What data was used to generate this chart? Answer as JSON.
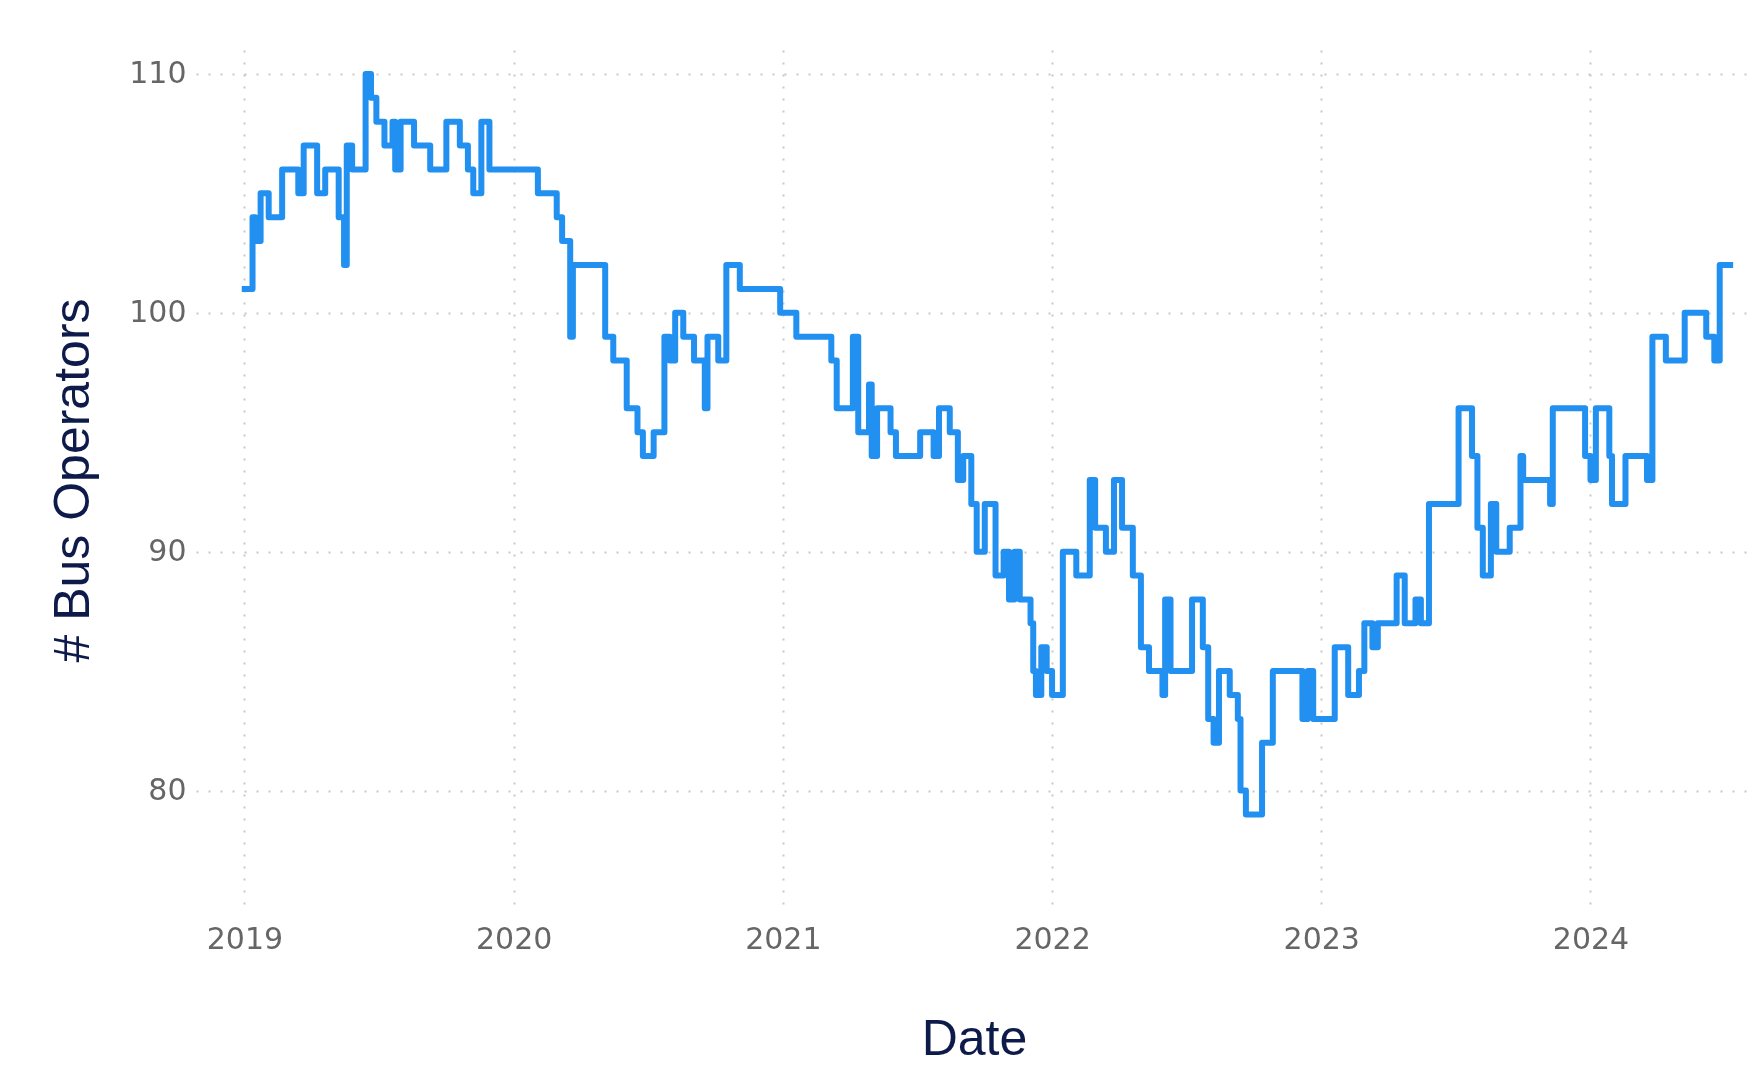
{
  "chart_data": {
    "type": "step",
    "xlabel": "Date",
    "ylabel": "# Bus Operators",
    "x": [
      2018.99,
      2019.03,
      2019.04,
      2019.06,
      2019.09,
      2019.14,
      2019.2,
      2019.22,
      2019.27,
      2019.3,
      2019.35,
      2019.37,
      2019.38,
      2019.4,
      2019.45,
      2019.47,
      2019.49,
      2019.52,
      2019.55,
      2019.56,
      2019.58,
      2019.63,
      2019.69,
      2019.75,
      2019.8,
      2019.83,
      2019.85,
      2019.88,
      2019.91,
      2020.09,
      2020.16,
      2020.18,
      2020.21,
      2020.22,
      2020.34,
      2020.37,
      2020.42,
      2020.46,
      2020.48,
      2020.52,
      2020.56,
      2020.58,
      2020.6,
      2020.63,
      2020.67,
      2020.71,
      2020.72,
      2020.76,
      2020.79,
      2020.84,
      2020.99,
      2021.05,
      2021.18,
      2021.2,
      2021.26,
      2021.28,
      2021.32,
      2021.33,
      2021.35,
      2021.4,
      2021.42,
      2021.51,
      2021.56,
      2021.58,
      2021.62,
      2021.65,
      2021.67,
      2021.7,
      2021.72,
      2021.75,
      2021.79,
      2021.82,
      2021.84,
      2021.86,
      2021.88,
      2021.92,
      2021.93,
      2021.94,
      2021.96,
      2021.98,
      2022.0,
      2022.04,
      2022.09,
      2022.14,
      2022.16,
      2022.2,
      2022.23,
      2022.26,
      2022.3,
      2022.33,
      2022.36,
      2022.41,
      2022.42,
      2022.44,
      2022.52,
      2022.56,
      2022.58,
      2022.6,
      2022.62,
      2022.66,
      2022.69,
      2022.7,
      2022.72,
      2022.78,
      2022.82,
      2022.93,
      2022.95,
      2022.97,
      2023.05,
      2023.1,
      2023.14,
      2023.16,
      2023.19,
      2023.21,
      2023.28,
      2023.31,
      2023.35,
      2023.37,
      2023.4,
      2023.51,
      2023.56,
      2023.58,
      2023.6,
      2023.63,
      2023.65,
      2023.7,
      2023.74,
      2023.75,
      2023.85,
      2023.86,
      2023.98,
      2024.0,
      2024.02,
      2024.07,
      2024.08,
      2024.13,
      2024.21,
      2024.23,
      2024.28,
      2024.35,
      2024.43,
      2024.46,
      2024.48,
      2024.53
    ],
    "series": [
      {
        "color": "#2190f0",
        "values": [
          101,
          104,
          103,
          105,
          104,
          106,
          105,
          107,
          105,
          106,
          104,
          102,
          107,
          106,
          110,
          109,
          108,
          107,
          108,
          106,
          108,
          107,
          106,
          108,
          107,
          106,
          105,
          108,
          106,
          105,
          104,
          103,
          99,
          102,
          99,
          98,
          96,
          95,
          94,
          95,
          99,
          98,
          100,
          99,
          98,
          96,
          99,
          98,
          102,
          101,
          100,
          99,
          98,
          96,
          99,
          95,
          97,
          94,
          96,
          95,
          94,
          95,
          94,
          96,
          95,
          93,
          94,
          92,
          90,
          92,
          89,
          90,
          88,
          90,
          88,
          87,
          85,
          84,
          86,
          85,
          84,
          90,
          89,
          93,
          91,
          90,
          93,
          91,
          89,
          86,
          85,
          84,
          88,
          85,
          88,
          86,
          83,
          82,
          85,
          84,
          83,
          80,
          79,
          82,
          85,
          83,
          85,
          83,
          86,
          84,
          85,
          87,
          86,
          87,
          89,
          87,
          88,
          87,
          92,
          96,
          94,
          91,
          89,
          92,
          90,
          91,
          94,
          93,
          92,
          96,
          94,
          93,
          96,
          94,
          92,
          94,
          93,
          99,
          98,
          100,
          99,
          98,
          102,
          102
        ]
      }
    ],
    "xlim": [
      2018.82,
      2024.6
    ],
    "xticks": [
      2019,
      2020,
      2021,
      2022,
      2023,
      2024
    ],
    "ylim": [
      75,
      111
    ],
    "yticks": [
      80,
      90,
      100,
      110
    ],
    "grid": true,
    "line_style": "solid"
  }
}
